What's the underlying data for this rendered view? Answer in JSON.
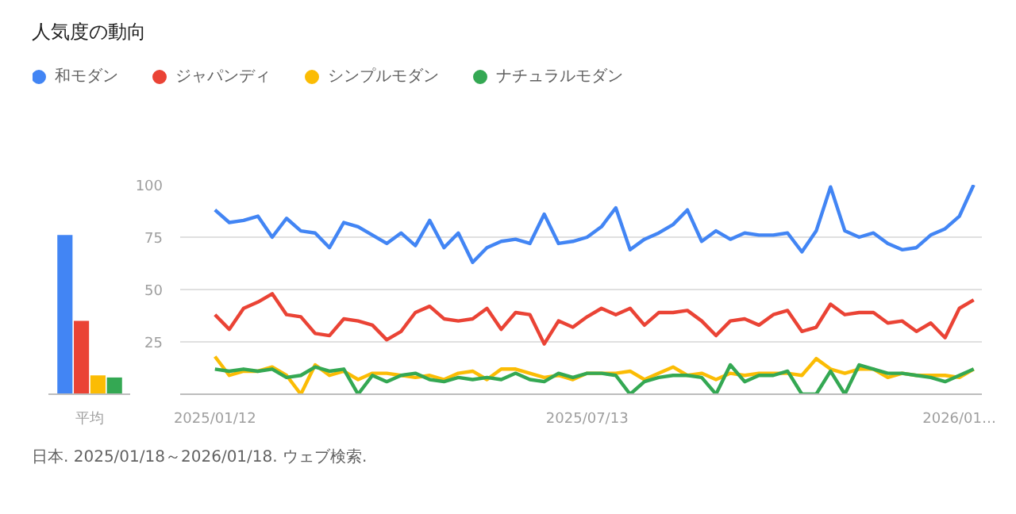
{
  "chart_data": [
    {
      "type": "bar",
      "title": "人気度の動向",
      "categories": [
        "平均"
      ],
      "ylim": [
        0,
        100
      ],
      "series": [
        {
          "color": "#4285f4",
          "values": [
            76
          ]
        },
        {
          "color": "#ea4335",
          "values": [
            35
          ]
        },
        {
          "color": "#fbbc04",
          "values": [
            9
          ]
        },
        {
          "color": "#34a853",
          "values": [
            8
          ]
        }
      ]
    },
    {
      "type": "line",
      "legend": "top",
      "grid": "y",
      "x": [
        "2025-01-12",
        "2025-01-19",
        "2025-01-26",
        "2025-02-02",
        "2025-02-09",
        "2025-02-16",
        "2025-02-23",
        "2025-03-02",
        "2025-03-09",
        "2025-03-16",
        "2025-03-23",
        "2025-03-30",
        "2025-04-06",
        "2025-04-13",
        "2025-04-20",
        "2025-04-27",
        "2025-05-04",
        "2025-05-11",
        "2025-05-18",
        "2025-05-25",
        "2025-06-01",
        "2025-06-08",
        "2025-06-15",
        "2025-06-22",
        "2025-06-29",
        "2025-07-06",
        "2025-07-13",
        "2025-07-20",
        "2025-07-27",
        "2025-08-03",
        "2025-08-10",
        "2025-08-17",
        "2025-08-24",
        "2025-08-31",
        "2025-09-07",
        "2025-09-14",
        "2025-09-21",
        "2025-09-28",
        "2025-10-05",
        "2025-10-12",
        "2025-10-19",
        "2025-10-26",
        "2025-11-02",
        "2025-11-09",
        "2025-11-16",
        "2025-11-23",
        "2025-11-30",
        "2025-12-07",
        "2025-12-14",
        "2025-12-21",
        "2025-12-28",
        "2026-01-04",
        "2026-01-11",
        "2026-01-18"
      ],
      "xlim": [
        "2024-12-26",
        "2026-01-22"
      ],
      "xticks": [
        {
          "value": "2025-01-12",
          "label": "2025/01/12"
        },
        {
          "value": "2025-07-13",
          "label": "2025/07/13"
        },
        {
          "value": "2026-01-11",
          "label": "2026/01…"
        }
      ],
      "ylim": [
        0,
        100
      ],
      "yticks": [
        25,
        50,
        75,
        100
      ],
      "series": [
        {
          "name": "和モダン",
          "color": "#4285f4",
          "values": [
            88,
            82,
            83,
            85,
            75,
            84,
            78,
            77,
            70,
            82,
            80,
            76,
            72,
            77,
            71,
            83,
            70,
            77,
            63,
            70,
            73,
            74,
            72,
            86,
            72,
            73,
            75,
            80,
            89,
            69,
            74,
            77,
            81,
            88,
            73,
            78,
            74,
            77,
            76,
            76,
            77,
            68,
            78,
            99,
            78,
            75,
            77,
            72,
            69,
            70,
            76,
            79,
            85,
            100
          ]
        },
        {
          "name": "ジャパンディ",
          "color": "#ea4335",
          "values": [
            38,
            31,
            41,
            44,
            48,
            38,
            37,
            29,
            28,
            36,
            35,
            33,
            26,
            30,
            39,
            42,
            36,
            35,
            36,
            41,
            31,
            39,
            38,
            24,
            35,
            32,
            37,
            41,
            38,
            41,
            33,
            39,
            39,
            40,
            35,
            28,
            35,
            36,
            33,
            38,
            40,
            30,
            32,
            43,
            38,
            39,
            39,
            34,
            35,
            30,
            34,
            27,
            41,
            45
          ]
        },
        {
          "name": "シンプルモダン",
          "color": "#fbbc04",
          "values": [
            18,
            9,
            11,
            11,
            13,
            9,
            0,
            14,
            9,
            11,
            7,
            10,
            10,
            9,
            8,
            9,
            7,
            10,
            11,
            7,
            12,
            12,
            10,
            8,
            9,
            7,
            10,
            10,
            10,
            11,
            7,
            10,
            13,
            9,
            10,
            7,
            10,
            9,
            10,
            10,
            10,
            9,
            17,
            12,
            10,
            12,
            12,
            8,
            10,
            9,
            9,
            9,
            8,
            12
          ]
        },
        {
          "name": "ナチュラルモダン",
          "color": "#34a853",
          "values": [
            12,
            11,
            12,
            11,
            12,
            8,
            9,
            13,
            11,
            12,
            0,
            9,
            6,
            9,
            10,
            7,
            6,
            8,
            7,
            8,
            7,
            10,
            7,
            6,
            10,
            8,
            10,
            10,
            9,
            0,
            6,
            8,
            9,
            9,
            8,
            0,
            14,
            6,
            9,
            9,
            11,
            0,
            0,
            11,
            0,
            14,
            12,
            10,
            10,
            9,
            8,
            6,
            9,
            12
          ]
        }
      ],
      "annotations": [
        "日本. 2025/01/18～2026/01/18. ウェブ検索."
      ]
    }
  ]
}
